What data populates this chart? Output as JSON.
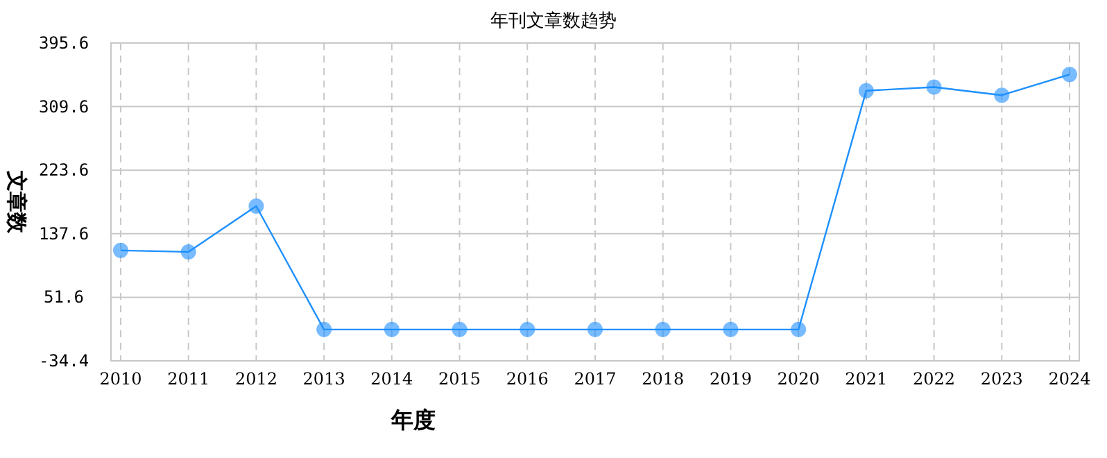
{
  "chart_data": {
    "type": "line",
    "title": "年刊文章数趋势",
    "xlabel": "年度",
    "ylabel": "文章数",
    "categories": [
      "2010",
      "2011",
      "2012",
      "2013",
      "2014",
      "2015",
      "2016",
      "2017",
      "2018",
      "2019",
      "2020",
      "2021",
      "2022",
      "2023",
      "2024"
    ],
    "series": [
      {
        "color": "#1e90ff",
        "values": [
          115,
          113,
          175,
          8,
          8,
          8,
          8,
          8,
          8,
          8,
          8,
          331,
          336,
          325,
          353
        ]
      }
    ],
    "ylim": [
      -34.4,
      395.6
    ],
    "yticks": [
      -34.4,
      51.6,
      137.6,
      223.6,
      309.6,
      395.6
    ],
    "grid": true,
    "marker": "circle",
    "line_style": "solid"
  }
}
